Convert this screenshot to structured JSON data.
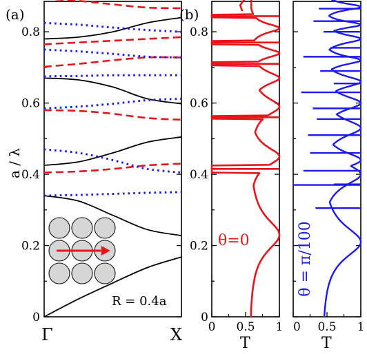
{
  "panels": {
    "a_label": "(a)",
    "b_label": "(b)"
  },
  "colors": {
    "te_bands": "#000000",
    "even_bands": "#e8141a",
    "odd_bands": "#1a1aee"
  },
  "inset": {
    "radius_label": "R = 0.4a",
    "lattice": "3x3 square lattice of cylinders",
    "arrow_color": "#e8141a"
  },
  "chart_data": [
    {
      "type": "line",
      "title": "",
      "ylabel": "a / λ",
      "xlabel": "",
      "ylim": [
        0,
        0.9
      ],
      "yticks": [
        "0",
        "0.2",
        "0.4",
        "0.6",
        "0.8"
      ],
      "xticks": [
        "Γ",
        "X"
      ],
      "x": [
        0,
        0.25,
        0.5,
        0.75,
        1
      ],
      "series": [
        {
          "style": "solid-black",
          "values": [
            0,
            0.05,
            0.095,
            0.138,
            0.168
          ]
        },
        {
          "style": "solid-black",
          "values": [
            0.34,
            0.325,
            0.285,
            0.245,
            0.228
          ]
        },
        {
          "style": "solid-black",
          "values": [
            0.425,
            0.435,
            0.46,
            0.49,
            0.505
          ]
        },
        {
          "style": "solid-black",
          "values": [
            0.67,
            0.665,
            0.645,
            0.612,
            0.598
          ]
        },
        {
          "style": "solid-black",
          "values": [
            0.78,
            0.785,
            0.8,
            0.825,
            0.84
          ]
        },
        {
          "style": "dashed-red",
          "values": [
            0.405,
            0.408,
            0.415,
            0.425,
            0.43
          ]
        },
        {
          "style": "dashed-red",
          "values": [
            0.58,
            0.578,
            0.57,
            0.558,
            0.553
          ]
        },
        {
          "style": "dashed-red",
          "values": [
            0.702,
            0.71,
            0.72,
            0.728,
            0.728
          ]
        },
        {
          "style": "dashed-red",
          "values": [
            0.765,
            0.77,
            0.775,
            0.78,
            0.785
          ]
        },
        {
          "style": "dashed-red",
          "values": [
            0.893,
            0.887,
            0.877,
            0.868,
            0.866
          ]
        },
        {
          "style": "dotted-blue",
          "values": [
            0.34,
            0.342,
            0.345,
            0.348,
            0.35
          ]
        },
        {
          "style": "dotted-blue",
          "values": [
            0.47,
            0.46,
            0.44,
            0.415,
            0.405
          ]
        },
        {
          "style": "dotted-blue",
          "values": [
            0.585,
            0.59,
            0.598,
            0.608,
            0.612
          ]
        },
        {
          "style": "dotted-blue",
          "values": [
            0.675,
            0.676,
            0.678,
            0.678,
            0.678
          ]
        },
        {
          "style": "dotted-blue",
          "values": [
            0.75,
            0.745,
            0.738,
            0.73,
            0.728
          ]
        },
        {
          "style": "dotted-blue",
          "values": [
            0.825,
            0.82,
            0.812,
            0.805,
            0.8
          ]
        },
        {
          "style": "dotted-blue",
          "values": [
            0.894,
            0.898,
            0.903,
            0.908,
            0.91
          ]
        }
      ]
    },
    {
      "type": "line",
      "title": "",
      "xlabel": "T",
      "xlim": [
        0,
        1
      ],
      "xticks": [
        "0",
        "0.5",
        "1"
      ],
      "ylim": [
        0,
        0.9
      ],
      "yticks": [
        "0",
        "0.2",
        "0.4",
        "0.6",
        "0.8"
      ],
      "series": [
        {
          "name": "θ=0",
          "peaks": [
            {
              "y": 0.23,
              "w": 0.058,
              "min": 0.55
            },
            {
              "y": 0.45,
              "w": 0.034,
              "min": 0.55
            },
            {
              "y": 0.59,
              "w": 0.03,
              "min": 0.58
            },
            {
              "y": 0.67,
              "w": 0.022,
              "min": 0.58
            },
            {
              "y": 0.74,
              "w": 0.016,
              "min": 0.55
            },
            {
              "y": 0.81,
              "w": 0.016,
              "min": 0.55
            }
          ],
          "gaps": [
            {
              "lo": 0.405,
              "hi": 0.425
            },
            {
              "lo": 0.555,
              "hi": 0.565
            },
            {
              "lo": 0.705,
              "hi": 0.715
            },
            {
              "lo": 0.765,
              "hi": 0.775
            },
            {
              "lo": 0.84,
              "hi": 0.848
            }
          ],
          "tail": [
            {
              "y": 0.858,
              "x": 0.45
            },
            {
              "y": 0.875,
              "x": 0.42
            },
            {
              "y": 0.89,
              "x": 0.48
            },
            {
              "y": 0.9,
              "x": 0.43
            }
          ]
        },
        {
          "name": "θ = π/100",
          "peaks": [
            {
              "y": 0.21,
              "w": 0.057,
              "min": 0.42
            },
            {
              "y": 0.4,
              "w": 0.04,
              "min": 0.42
            },
            {
              "y": 0.44,
              "w": 0.028,
              "min": 0.42
            },
            {
              "y": 0.53,
              "w": 0.03,
              "min": 0.42
            },
            {
              "y": 0.6,
              "w": 0.025,
              "min": 0.42
            },
            {
              "y": 0.66,
              "w": 0.02,
              "min": 0.42
            },
            {
              "y": 0.72,
              "w": 0.015,
              "min": 0.42
            },
            {
              "y": 0.78,
              "w": 0.015,
              "min": 0.42
            },
            {
              "y": 0.82,
              "w": 0.012,
              "min": 0.42
            },
            {
              "y": 0.87,
              "w": 0.012,
              "min": 0.42
            }
          ],
          "spikes": [
            {
              "y": 0.305,
              "x": 0.33
            },
            {
              "y": 0.37,
              "x": 0.0
            },
            {
              "y": 0.372,
              "x": 0.6
            },
            {
              "y": 0.41,
              "x": 0.15
            },
            {
              "y": 0.46,
              "x": 0.25
            },
            {
              "y": 0.51,
              "x": 0.22
            },
            {
              "y": 0.555,
              "x": 0.35
            },
            {
              "y": 0.585,
              "x": 0.29
            },
            {
              "y": 0.63,
              "x": 0.12
            },
            {
              "y": 0.655,
              "x": 0.6
            },
            {
              "y": 0.69,
              "x": 0.4
            },
            {
              "y": 0.73,
              "x": 0.15
            },
            {
              "y": 0.755,
              "x": 0.55
            },
            {
              "y": 0.8,
              "x": 0.45
            },
            {
              "y": 0.83,
              "x": 0.3
            },
            {
              "y": 0.865,
              "x": 0.38
            }
          ]
        }
      ]
    }
  ]
}
